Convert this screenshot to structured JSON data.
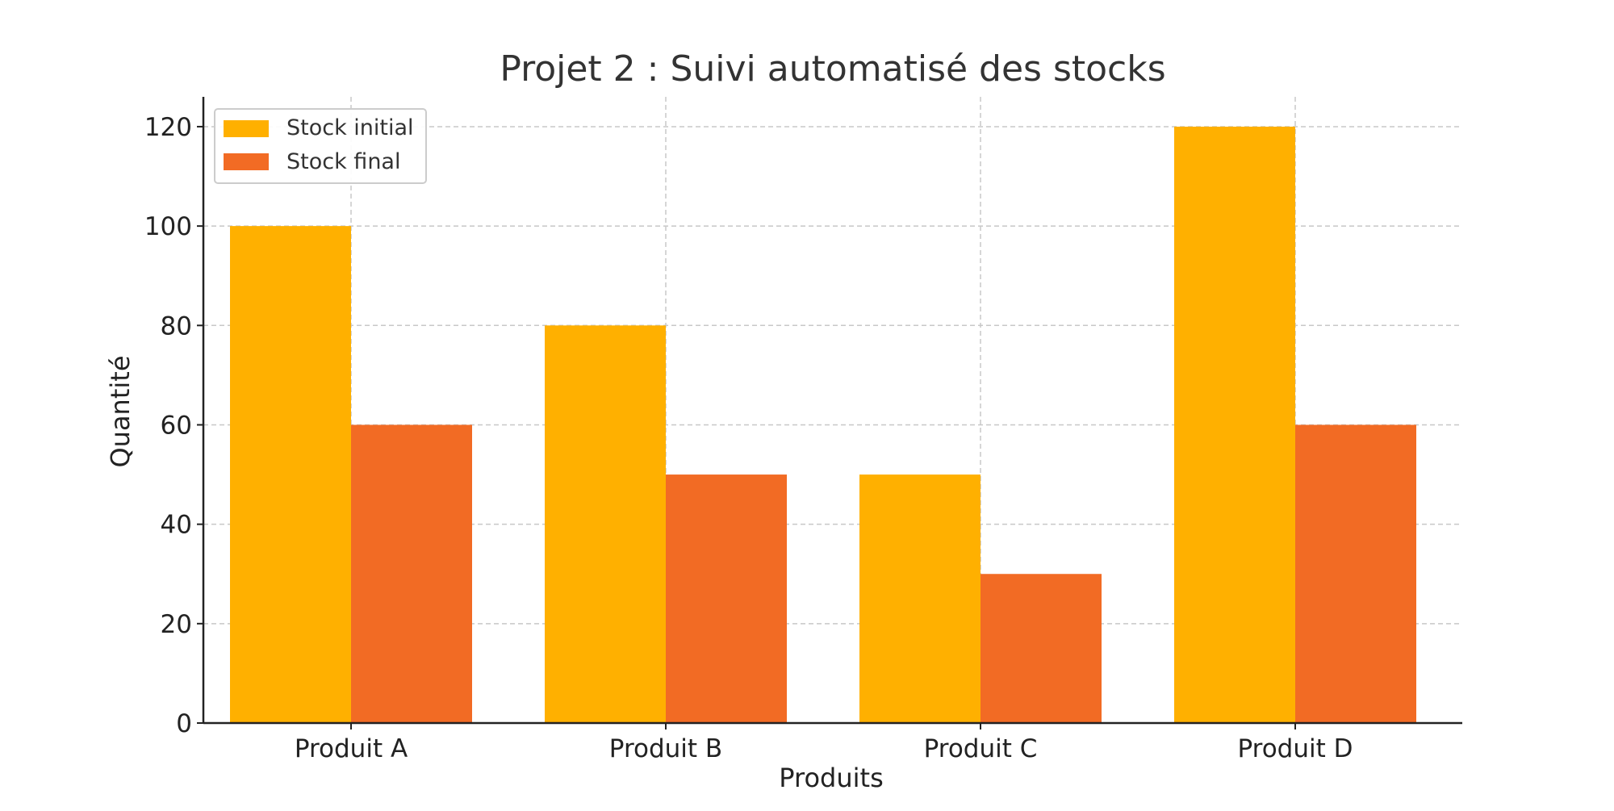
{
  "chart_data": {
    "type": "bar",
    "title": "Projet 2 : Suivi automatisé des stocks",
    "xlabel": "Produits",
    "ylabel": "Quantité",
    "categories": [
      "Produit A",
      "Produit B",
      "Produit C",
      "Produit D"
    ],
    "series": [
      {
        "name": "Stock initial",
        "values": [
          100,
          80,
          50,
          120
        ],
        "color": "#FFB000"
      },
      {
        "name": "Stock final",
        "values": [
          60,
          50,
          30,
          60
        ],
        "color": "#F26B24"
      }
    ],
    "ylim": [
      0,
      126
    ],
    "yticks": [
      0,
      20,
      40,
      60,
      80,
      100,
      120
    ],
    "grid": true,
    "legend_position": "top-left"
  }
}
